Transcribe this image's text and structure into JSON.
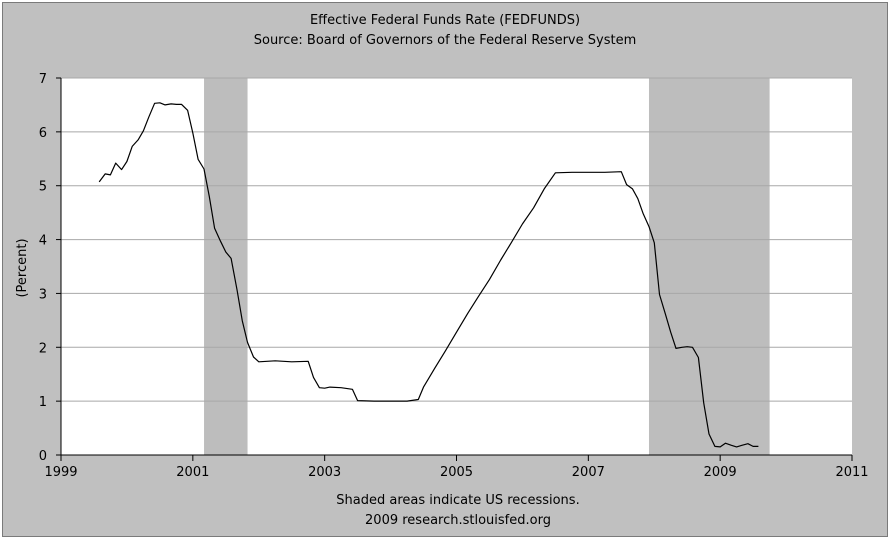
{
  "chart_data": {
    "type": "line",
    "title": "Effective Federal Funds Rate (FEDFUNDS)",
    "subtitle": "Source: Board of Governors of the Federal Reserve System",
    "xlabel": "",
    "ylabel": "(Percent)",
    "xlim": [
      1999,
      2011
    ],
    "ylim": [
      0,
      7
    ],
    "x_ticks": [
      "1999",
      "2001",
      "2003",
      "2005",
      "2007",
      "2009",
      "2011"
    ],
    "y_ticks": [
      "0",
      "1",
      "2",
      "3",
      "4",
      "5",
      "6",
      "7"
    ],
    "grid": "horizontal",
    "recessions": [
      {
        "start": 2001.17,
        "end": 2001.83
      },
      {
        "start": 2007.92,
        "end": 2009.75
      }
    ],
    "series": [
      {
        "x": [
          1999.58,
          1999.67,
          1999.75,
          1999.83,
          1999.92,
          2000.0,
          2000.08,
          2000.17,
          2000.25,
          2000.33,
          2000.42,
          2000.5,
          2000.58,
          2000.67,
          2000.75,
          2000.83,
          2000.92,
          2001.0,
          2001.08,
          2001.17,
          2001.25,
          2001.33,
          2001.42,
          2001.5,
          2001.58,
          2001.67,
          2001.75,
          2001.83,
          2001.92,
          2002.0,
          2002.25,
          2002.5,
          2002.75,
          2002.83,
          2002.92,
          2003.0,
          2003.08,
          2003.25,
          2003.42,
          2003.5,
          2003.75,
          2004.0,
          2004.25,
          2004.42,
          2004.5,
          2004.67,
          2004.83,
          2005.0,
          2005.17,
          2005.33,
          2005.5,
          2005.67,
          2005.83,
          2006.0,
          2006.17,
          2006.33,
          2006.5,
          2006.75,
          2007.0,
          2007.25,
          2007.5,
          2007.58,
          2007.67,
          2007.75,
          2007.83,
          2007.92,
          2008.0,
          2008.08,
          2008.17,
          2008.25,
          2008.33,
          2008.42,
          2008.5,
          2008.58,
          2008.67,
          2008.75,
          2008.83,
          2008.92,
          2009.0,
          2009.08,
          2009.17,
          2009.25,
          2009.33,
          2009.42,
          2009.5,
          2009.58
        ],
        "values": [
          5.07,
          5.22,
          5.2,
          5.42,
          5.3,
          5.45,
          5.73,
          5.85,
          6.02,
          6.27,
          6.53,
          6.54,
          6.5,
          6.52,
          6.51,
          6.51,
          6.4,
          5.98,
          5.49,
          5.31,
          4.8,
          4.21,
          3.97,
          3.77,
          3.65,
          3.07,
          2.49,
          2.09,
          1.82,
          1.73,
          1.75,
          1.73,
          1.74,
          1.44,
          1.25,
          1.24,
          1.26,
          1.25,
          1.22,
          1.01,
          1.0,
          1.0,
          1.0,
          1.03,
          1.26,
          1.61,
          1.93,
          2.28,
          2.63,
          2.94,
          3.26,
          3.62,
          3.94,
          4.29,
          4.59,
          4.94,
          5.24,
          5.25,
          5.25,
          5.25,
          5.26,
          5.02,
          4.94,
          4.76,
          4.49,
          4.24,
          3.94,
          2.98,
          2.61,
          2.28,
          1.98,
          2.0,
          2.01,
          2.0,
          1.81,
          0.97,
          0.39,
          0.16,
          0.15,
          0.22,
          0.18,
          0.15,
          0.18,
          0.21,
          0.16,
          0.16
        ]
      }
    ],
    "annotations": [
      "Shaded areas indicate US recessions.",
      "2009 research.stlouisfed.org"
    ],
    "colors": {
      "background": "#c0c0c0",
      "plot_background": "#ffffff",
      "recession": "#bdbdbd",
      "grid": "#a8a8a8",
      "line": "#000000"
    }
  }
}
